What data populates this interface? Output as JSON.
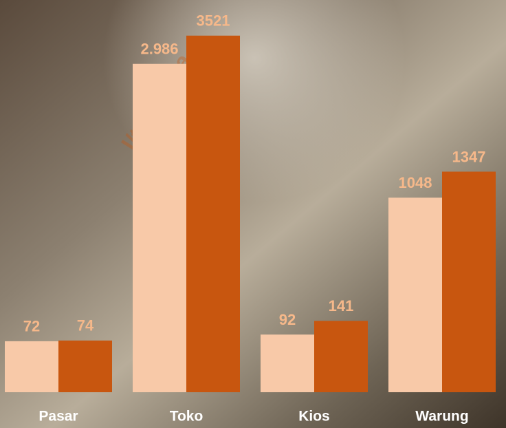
{
  "chart_data": {
    "type": "bar",
    "categories": [
      "Pasar",
      "Toko",
      "Kios",
      "Warung"
    ],
    "series": [
      {
        "color": "#f8c9a8",
        "values": [
          72,
          2986,
          92,
          1048
        ],
        "value_labels": [
          "72",
          "2.986",
          "92",
          "1048"
        ]
      },
      {
        "color": "#c8560f",
        "values": [
          74,
          3521,
          141,
          1347
        ]
      }
    ],
    "ylim": [
      0,
      3600
    ],
    "scale": "sqrt",
    "label_color": "#f6b88a",
    "watermark": "l/tanjabba"
  }
}
